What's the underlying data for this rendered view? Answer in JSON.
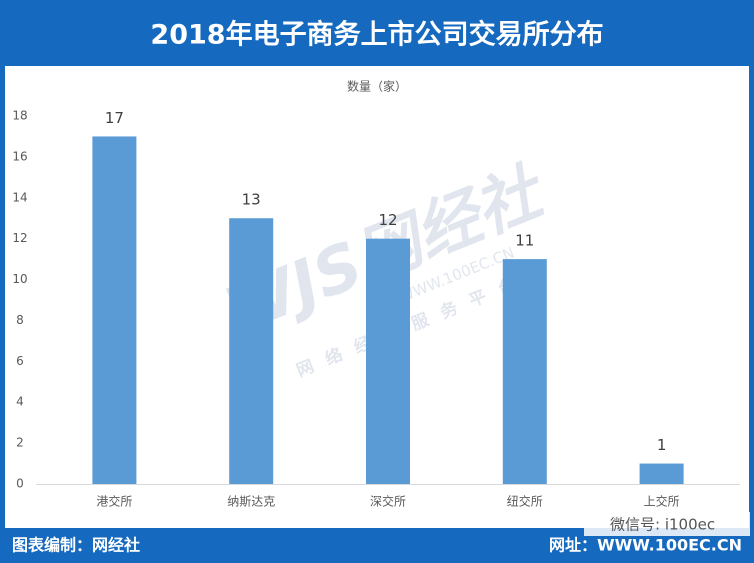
{
  "chart_data": {
    "type": "bar",
    "title": "2018年电子商务上市公司交易所分布",
    "subtitle": "数量（家）",
    "categories": [
      "港交所",
      "纳斯达克",
      "深交所",
      "纽交所",
      "上交所"
    ],
    "values": [
      17,
      13,
      12,
      11,
      1
    ],
    "color": "#5b9bd5",
    "ylim": [
      0,
      18
    ],
    "yticks": [
      0,
      2,
      4,
      6,
      8,
      10,
      12,
      14,
      16,
      18
    ],
    "grid": false
  },
  "watermark": {
    "logo": "WJS网经社",
    "url": "WWW.100EC.CN",
    "slogan": "网络经济服务平台"
  },
  "wechat": "微信号: i100ec",
  "footer": {
    "credit": "图表编制：网经社",
    "website": "网址：WWW.100EC.CN"
  }
}
